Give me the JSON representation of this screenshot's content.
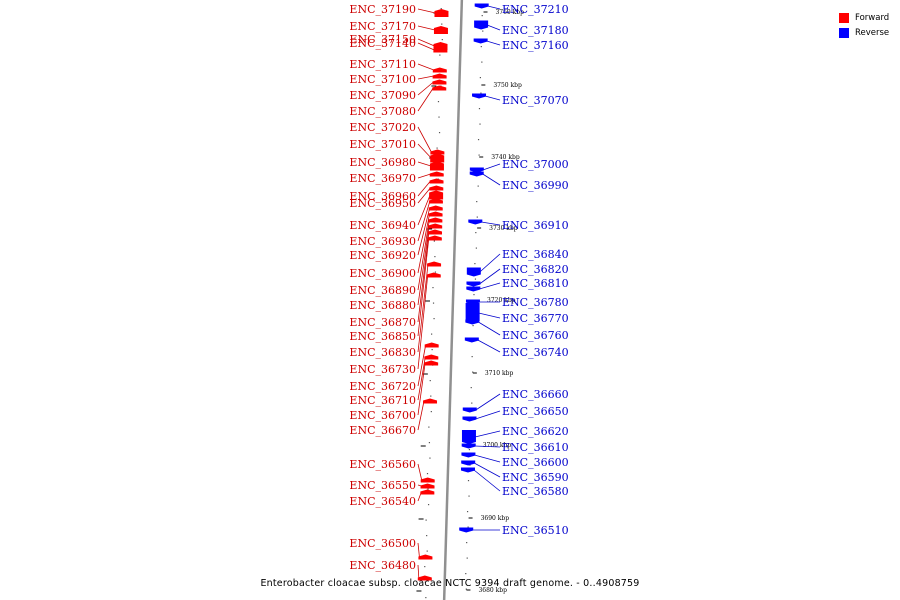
{
  "caption": "Enterobacter cloacae subsp. cloacae NCTC 9394 draft genome. - 0..4908759",
  "legend": [
    {
      "label": "Forward",
      "color": "#ff0000"
    },
    {
      "label": "Reverse",
      "color": "#0000ff"
    }
  ],
  "colors": {
    "forward": "#ff0000",
    "reverse": "#0000ff",
    "forward_text": "#cc0000",
    "reverse_text": "#0000cc",
    "axis": "#909090"
  },
  "ticks": [
    "3760 kbp",
    "3750 kbp",
    "3740 kbp",
    "3730 kbp",
    "3720 kbp",
    "3710 kbp",
    "3700 kbp",
    "3690 kbp",
    "3680 kbp"
  ],
  "forward_labels": [
    "ENC_37190",
    "ENC_37170",
    "ENC_37150",
    "ENC_37140",
    "ENC_37110",
    "ENC_37100",
    "ENC_37090",
    "ENC_37080",
    "ENC_37020",
    "ENC_37010",
    "ENC_36980",
    "ENC_36970",
    "ENC_36960",
    "ENC_36950",
    "ENC_36940",
    "ENC_36930",
    "ENC_36920",
    "ENC_36900",
    "ENC_36890",
    "ENC_36880",
    "ENC_36870",
    "ENC_36850",
    "ENC_36830",
    "ENC_36730",
    "ENC_36720",
    "ENC_36710",
    "ENC_36700",
    "ENC_36670",
    "ENC_36560",
    "ENC_36550",
    "ENC_36540",
    "ENC_36500",
    "ENC_36480"
  ],
  "reverse_labels": [
    "ENC_37210",
    "ENC_37180",
    "ENC_37160",
    "ENC_37070",
    "ENC_37000",
    "ENC_36990",
    "ENC_36910",
    "ENC_36840",
    "ENC_36820",
    "ENC_36810",
    "ENC_36780",
    "ENC_36770",
    "ENC_36760",
    "ENC_36740",
    "ENC_36660",
    "ENC_36650",
    "ENC_36620",
    "ENC_36610",
    "ENC_36600",
    "ENC_36590",
    "ENC_36580",
    "ENC_36510"
  ]
}
